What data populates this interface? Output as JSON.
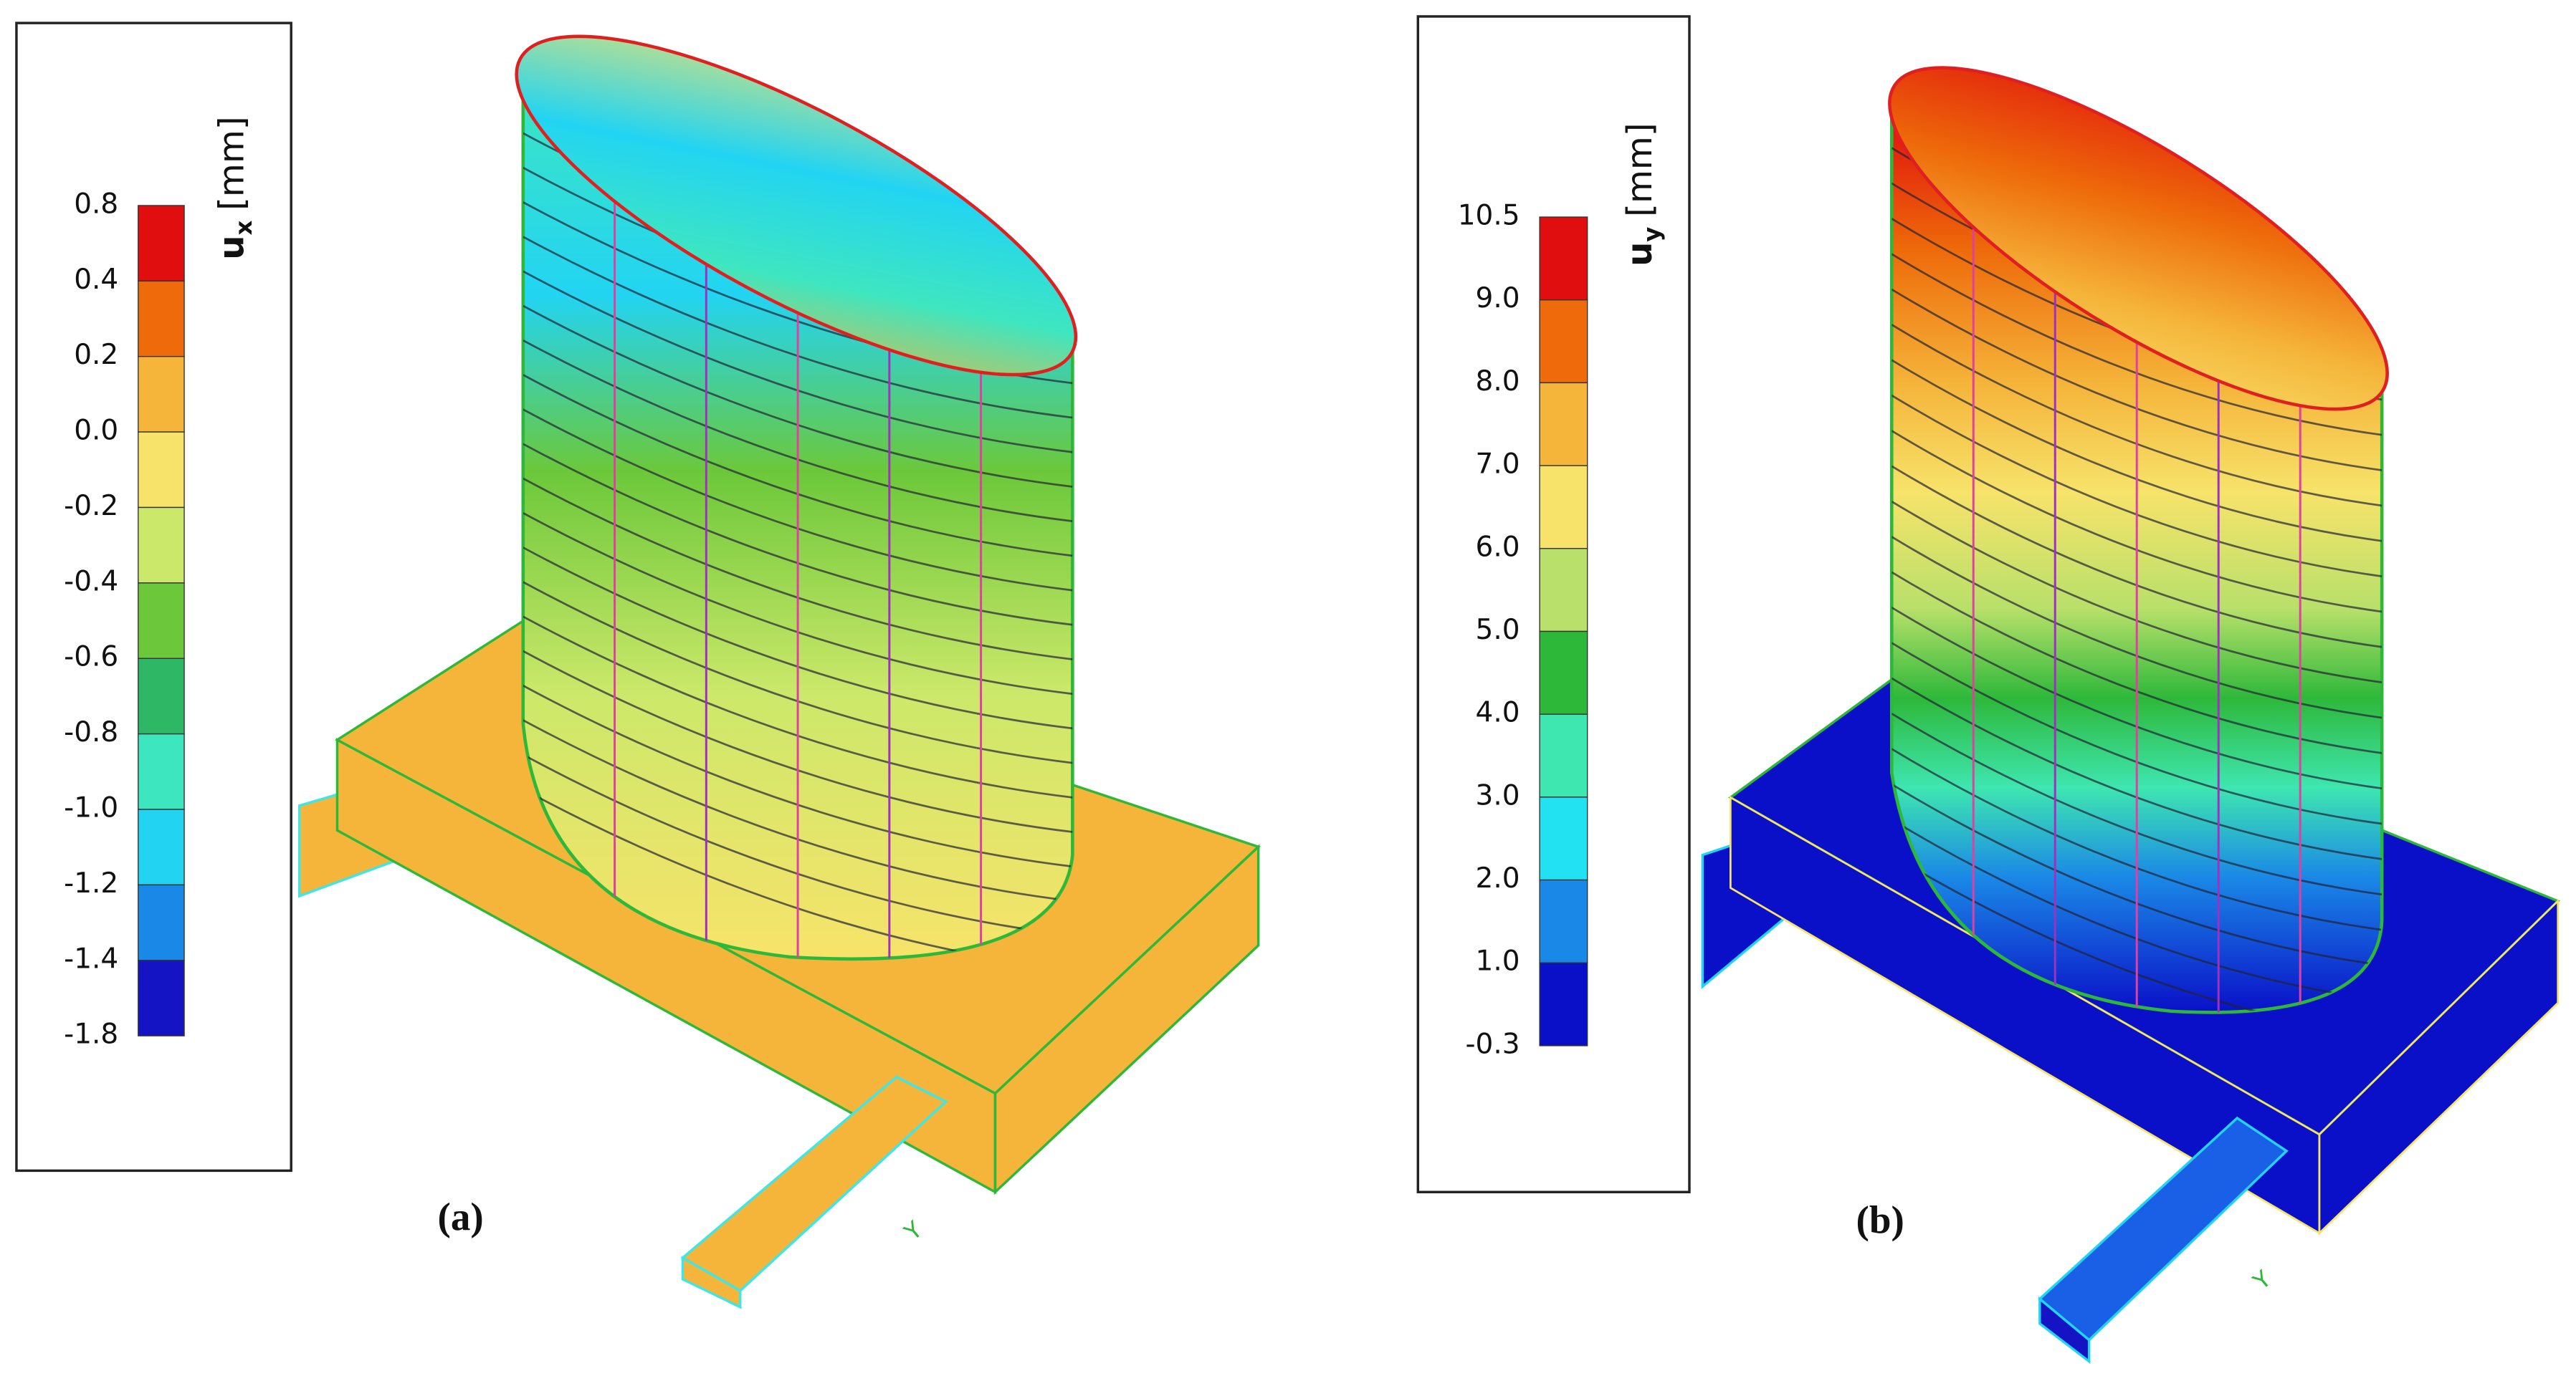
{
  "panels": [
    {
      "label": "(a)",
      "legend": {
        "title": "u",
        "subscript": "x",
        "unit": "[mm]",
        "labels": [
          "0.8",
          "0.4",
          "0.2",
          "0.0",
          "-0.2",
          "-0.4",
          "-0.6",
          "-0.8",
          "-1.0",
          "-1.2",
          "-1.4",
          "-1.8"
        ],
        "colors": [
          "#e00e0e",
          "#ee6a0a",
          "#f5b43a",
          "#f7e36a",
          "#cce86a",
          "#6cc83a",
          "#2eb866",
          "#3ee6c0",
          "#22d4f2",
          "#1a88e6",
          "#1414c4"
        ]
      }
    },
    {
      "label": "(b)",
      "legend": {
        "title": "u",
        "subscript": "y",
        "unit": "[mm]",
        "labels": [
          "10.5",
          "9.0",
          "8.0",
          "7.0",
          "6.0",
          "5.0",
          "4.0",
          "3.0",
          "2.0",
          "1.0",
          "-0.3"
        ],
        "colors": [
          "#e00e0e",
          "#ee6a0a",
          "#f5b43a",
          "#f7e36a",
          "#b8e06a",
          "#2eb83a",
          "#3ee6b0",
          "#22e2f2",
          "#1a88e6",
          "#0a10c8"
        ]
      }
    }
  ]
}
